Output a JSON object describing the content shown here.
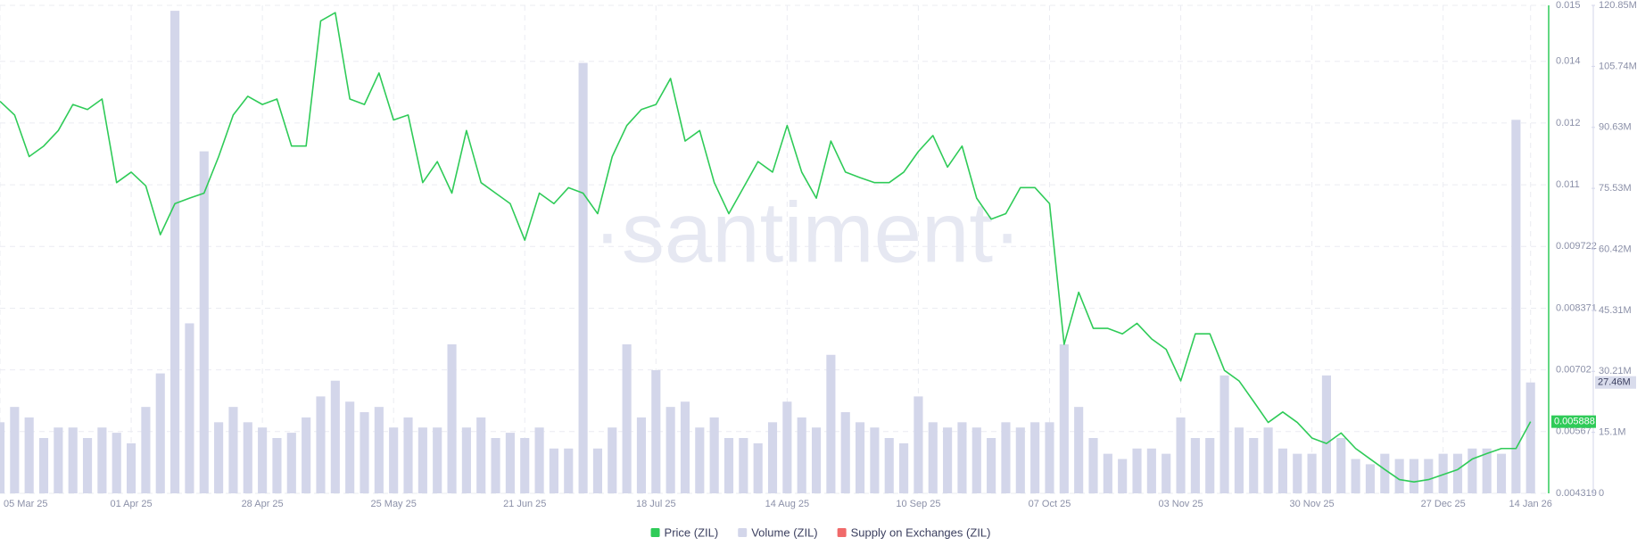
{
  "chart_data": {
    "type": "line",
    "watermark": "·santiment·",
    "categories": [
      "05 Mar 25",
      null,
      null,
      null,
      null,
      null,
      null,
      null,
      null,
      "01 Apr 25",
      null,
      null,
      null,
      null,
      null,
      null,
      null,
      null,
      "28 Apr 25",
      null,
      null,
      null,
      null,
      null,
      null,
      null,
      null,
      "25 May 25",
      null,
      null,
      null,
      null,
      null,
      null,
      null,
      null,
      "21 Jun 25",
      null,
      null,
      null,
      null,
      null,
      null,
      null,
      null,
      "18 Jul 25",
      null,
      null,
      null,
      null,
      null,
      null,
      null,
      null,
      "14 Aug 25",
      null,
      null,
      null,
      null,
      null,
      null,
      null,
      null,
      "10 Sep 25",
      null,
      null,
      null,
      null,
      null,
      null,
      null,
      null,
      "07 Oct 25",
      null,
      null,
      null,
      null,
      null,
      null,
      null,
      null,
      "03 Nov 25",
      null,
      null,
      null,
      null,
      null,
      null,
      null,
      null,
      "30 Nov 25",
      null,
      null,
      null,
      null,
      null,
      null,
      null,
      null,
      "27 Dec 25",
      null,
      null,
      null,
      null,
      null,
      "14 Jan 26"
    ],
    "series": [
      {
        "name": "Price (ZIL)",
        "type": "line",
        "color": "#2fcb58",
        "last_label": "0.005888",
        "values": [
          0.0129,
          0.0126,
          0.01169,
          0.01192,
          0.01226,
          0.01283,
          0.01272,
          0.01295,
          0.01112,
          0.01135,
          0.01105,
          0.00998,
          0.01066,
          0.01078,
          0.01089,
          0.01169,
          0.0126,
          0.01301,
          0.01283,
          0.01295,
          0.01192,
          0.01192,
          0.01466,
          0.01484,
          0.01295,
          0.01283,
          0.01352,
          0.01249,
          0.0126,
          0.01112,
          0.01158,
          0.01089,
          0.01226,
          0.01112,
          0.01089,
          0.01066,
          0.00986,
          0.01089,
          0.01066,
          0.01101,
          0.01089,
          0.01044,
          0.01169,
          0.01237,
          0.01272,
          0.01283,
          0.0134,
          0.01203,
          0.01226,
          0.01112,
          0.01044,
          0.01101,
          0.01158,
          0.01135,
          0.01237,
          0.01135,
          0.01078,
          0.01203,
          0.01135,
          0.01123,
          0.01112,
          0.01112,
          0.01135,
          0.0118,
          0.01215,
          0.01146,
          0.01192,
          0.01078,
          0.01032,
          0.01044,
          0.01101,
          0.01101,
          0.01066,
          0.00758,
          0.00872,
          0.00793,
          0.00793,
          0.00781,
          0.00804,
          0.0077,
          0.00747,
          0.00678,
          0.00781,
          0.00781,
          0.00701,
          0.00678,
          0.00633,
          0.00587,
          0.0061,
          0.00587,
          0.00553,
          0.00541,
          0.00564,
          0.0053,
          0.00507,
          0.00484,
          0.00462,
          0.00457,
          0.00462,
          0.00473,
          0.00484,
          0.00507,
          0.00519,
          0.0053,
          0.0053,
          0.005888
        ]
      },
      {
        "name": "Volume (ZIL)",
        "type": "bar",
        "axis": "y2",
        "color": "#d3d6ea",
        "last_label": "27.46M",
        "values": [
          17600000,
          21400000,
          18800000,
          13700000,
          16300000,
          16300000,
          13700000,
          16300000,
          15000000,
          12400000,
          21400000,
          29700000,
          119500000,
          42100000,
          84700000,
          17600000,
          21400000,
          17600000,
          16300000,
          13700000,
          15000000,
          18800000,
          24000000,
          27900000,
          22700000,
          20100000,
          21400000,
          16300000,
          18800000,
          16300000,
          16300000,
          36900000,
          16300000,
          18800000,
          13700000,
          15000000,
          13700000,
          16300000,
          11100000,
          11100000,
          106600000,
          11100000,
          16300000,
          36900000,
          18800000,
          30500000,
          21400000,
          22700000,
          16300000,
          18800000,
          13700000,
          13700000,
          12400000,
          17600000,
          22700000,
          18800000,
          16300000,
          34300000,
          20100000,
          17600000,
          16300000,
          13700000,
          12400000,
          24000000,
          17600000,
          16300000,
          17600000,
          16300000,
          13700000,
          17600000,
          16300000,
          17600000,
          17600000,
          36900000,
          21400000,
          13700000,
          9800000,
          8500000,
          11100000,
          11100000,
          9800000,
          18800000,
          13700000,
          13700000,
          29200000,
          16300000,
          13700000,
          16300000,
          11100000,
          9800000,
          9800000,
          29200000,
          13700000,
          8500000,
          7200000,
          9800000,
          8500000,
          8500000,
          8500000,
          9800000,
          9800000,
          11100000,
          11100000,
          9800000,
          92500000,
          27460000
        ]
      },
      {
        "name": "Supply on Exchanges (ZIL)",
        "color": "#f06a6a"
      }
    ],
    "ylim": [
      0.004319,
      0.015
    ],
    "yticks": [
      0.004319,
      0.00567,
      0.00702,
      0.008371,
      0.009722,
      {
        "value": 0.011073,
        "label": "0.011"
      },
      {
        "value": 0.012424,
        "label": "0.012"
      },
      {
        "value": 0.013775,
        "label": "0.014"
      },
      0.015
    ],
    "y2lim": [
      0,
      120850000
    ],
    "y2ticks": [
      0,
      {
        "value": 15100000,
        "label": "15.1M"
      },
      {
        "value": 30210000,
        "label": "30.21M"
      },
      {
        "value": 45310000,
        "label": "45.31M"
      },
      {
        "value": 60420000,
        "label": "60.42M"
      },
      {
        "value": 75530000,
        "label": "75.53M"
      },
      {
        "value": 90630000,
        "label": "90.63M"
      },
      {
        "value": 105740000,
        "label": "105.74M"
      },
      {
        "value": 120850000,
        "label": "120.85M"
      }
    ],
    "grid": true,
    "legend": "bottom"
  }
}
